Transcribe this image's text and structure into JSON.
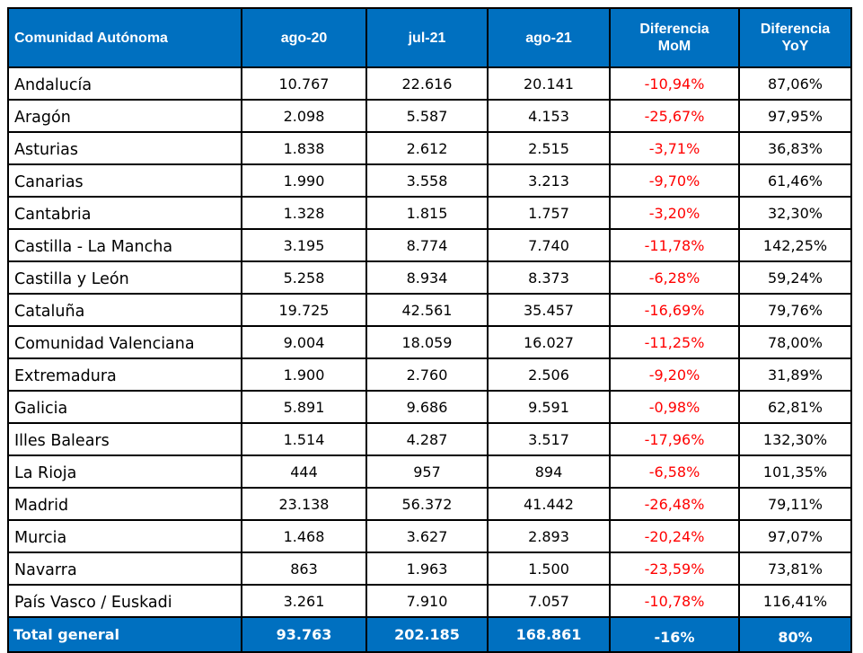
{
  "table": {
    "headers": [
      "Comunidad Autónoma",
      "ago-20",
      "jul-21",
      "ago-21",
      "Diferencia MoM",
      "Diferencia YoY"
    ],
    "header_lines": {
      "mom": [
        "Diferencia",
        "MoM"
      ],
      "yoy": [
        "Diferencia",
        "YoY"
      ]
    },
    "rows": [
      {
        "name": "Andalucía",
        "ago20": "10.767",
        "jul21": "22.616",
        "ago21": "20.141",
        "mom": "-10,94%",
        "yoy": "87,06%"
      },
      {
        "name": "Aragón",
        "ago20": "2.098",
        "jul21": "5.587",
        "ago21": "4.153",
        "mom": "-25,67%",
        "yoy": "97,95%"
      },
      {
        "name": "Asturias",
        "ago20": "1.838",
        "jul21": "2.612",
        "ago21": "2.515",
        "mom": "-3,71%",
        "yoy": "36,83%"
      },
      {
        "name": "Canarias",
        "ago20": "1.990",
        "jul21": "3.558",
        "ago21": "3.213",
        "mom": "-9,70%",
        "yoy": "61,46%"
      },
      {
        "name": "Cantabria",
        "ago20": "1.328",
        "jul21": "1.815",
        "ago21": "1.757",
        "mom": "-3,20%",
        "yoy": "32,30%"
      },
      {
        "name": "Castilla - La Mancha",
        "ago20": "3.195",
        "jul21": "8.774",
        "ago21": "7.740",
        "mom": "-11,78%",
        "yoy": "142,25%"
      },
      {
        "name": "Castilla y León",
        "ago20": "5.258",
        "jul21": "8.934",
        "ago21": "8.373",
        "mom": "-6,28%",
        "yoy": "59,24%"
      },
      {
        "name": "Cataluña",
        "ago20": "19.725",
        "jul21": "42.561",
        "ago21": "35.457",
        "mom": "-16,69%",
        "yoy": "79,76%"
      },
      {
        "name": "Comunidad Valenciana",
        "ago20": "9.004",
        "jul21": "18.059",
        "ago21": "16.027",
        "mom": "-11,25%",
        "yoy": "78,00%"
      },
      {
        "name": "Extremadura",
        "ago20": "1.900",
        "jul21": "2.760",
        "ago21": "2.506",
        "mom": "-9,20%",
        "yoy": "31,89%"
      },
      {
        "name": "Galicia",
        "ago20": "5.891",
        "jul21": "9.686",
        "ago21": "9.591",
        "mom": "-0,98%",
        "yoy": "62,81%"
      },
      {
        "name": "Illes Balears",
        "ago20": "1.514",
        "jul21": "4.287",
        "ago21": "3.517",
        "mom": "-17,96%",
        "yoy": "132,30%"
      },
      {
        "name": "La Rioja",
        "ago20": "444",
        "jul21": "957",
        "ago21": "894",
        "mom": "-6,58%",
        "yoy": "101,35%"
      },
      {
        "name": "Madrid",
        "ago20": "23.138",
        "jul21": "56.372",
        "ago21": "41.442",
        "mom": "-26,48%",
        "yoy": "79,11%"
      },
      {
        "name": "Murcia",
        "ago20": "1.468",
        "jul21": "3.627",
        "ago21": "2.893",
        "mom": "-20,24%",
        "yoy": "97,07%"
      },
      {
        "name": "Navarra",
        "ago20": "863",
        "jul21": "1.963",
        "ago21": "1.500",
        "mom": "-23,59%",
        "yoy": "73,81%"
      },
      {
        "name": "País Vasco / Euskadi",
        "ago20": "3.261",
        "jul21": "7.910",
        "ago21": "7.057",
        "mom": "-10,78%",
        "yoy": "116,41%"
      }
    ],
    "total": {
      "name": "Total general",
      "ago20": "93.763",
      "jul21": "202.185",
      "ago21": "168.861",
      "mom": "-16%",
      "yoy": "80%"
    }
  },
  "colors": {
    "header_bg": "#0070c0",
    "header_text": "#ffffff",
    "negative": "#ff0000",
    "border": "#000000"
  }
}
